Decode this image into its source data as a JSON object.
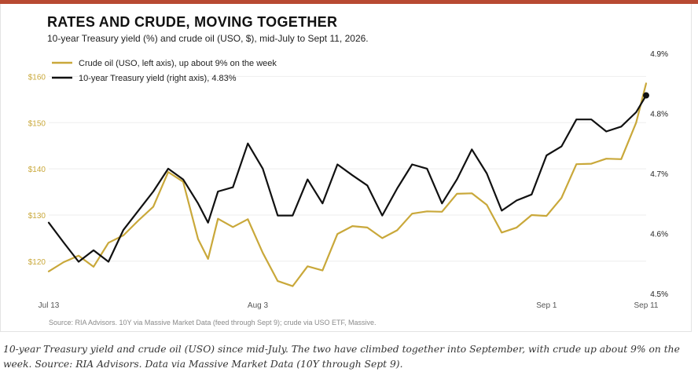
{
  "header": {
    "title": "RATES AND CRUDE, MOVING TOGETHER",
    "subtitle": "10-year Treasury yield (%) and crude oil (USO, $), mid-July to Sept 11, 2026."
  },
  "footer": {
    "source": "Source: RIA Advisors. 10Y via Massive Market Data (feed through Sept 9); crude via USO ETF, Massive.",
    "caption": "10-year Treasury yield and crude oil (USO) since mid-July. The two have climbed together into September, with crude up about 9% on the week. Source: RIA Advisors. Data via Massive Market Data (10Y through Sept 9)."
  },
  "colors": {
    "accent_bar": "#b84a32",
    "crude": "#c9a83a",
    "yield": "#111111",
    "left_axis_text": "#c9a83a",
    "grid": "#eeeeee"
  },
  "chart_data": {
    "type": "line",
    "title": "RATES AND CRUDE, MOVING TOGETHER",
    "x_ticks": [
      {
        "label": "Jul 13",
        "day": 0
      },
      {
        "label": "Aug 3",
        "day": 21
      },
      {
        "label": "Sep 1",
        "day": 50
      },
      {
        "label": "Sep 11",
        "day": 60
      }
    ],
    "x_range": [
      0,
      60
    ],
    "y_left": {
      "ylim": [
        113,
        165
      ],
      "ticks": [
        {
          "v": 120,
          "label": "$120"
        },
        {
          "v": 130,
          "label": "$130"
        },
        {
          "v": 140,
          "label": "$140"
        },
        {
          "v": 150,
          "label": "$150"
        },
        {
          "v": 160,
          "label": "$160"
        }
      ]
    },
    "y_right": {
      "ylim": [
        4.5,
        4.9
      ],
      "ticks": [
        {
          "v": 4.5,
          "label": "4.5%"
        },
        {
          "v": 4.6,
          "label": "4.6%"
        },
        {
          "v": 4.7,
          "label": "4.7%"
        },
        {
          "v": 4.8,
          "label": "4.8%"
        },
        {
          "v": 4.9,
          "label": "4.9%"
        }
      ]
    },
    "grid": true,
    "legend_position": "top-left",
    "series": [
      {
        "name": "Crude oil (USO, left axis), up about 9% on the week",
        "axis": "left",
        "color": "#c9a83a",
        "x": [
          0,
          1.5,
          3,
          4.5,
          6,
          7.5,
          9,
          10.5,
          12,
          13.5,
          15,
          16,
          17,
          18.5,
          20,
          21.5,
          23,
          24.5,
          26,
          27.5,
          29,
          30.5,
          32,
          33.5,
          35,
          36.5,
          38,
          39.5,
          41,
          42.5,
          44,
          45.5,
          47,
          48.5,
          50,
          51.5,
          53,
          54.5,
          56,
          57.5,
          59,
          60
        ],
        "values": [
          117.8,
          119.8,
          121.2,
          118.8,
          124.0,
          125.6,
          128.8,
          131.8,
          139.3,
          137.2,
          124.8,
          120.5,
          129.2,
          127.4,
          129.1,
          121.8,
          115.7,
          114.6,
          118.9,
          118.0,
          125.9,
          127.6,
          127.3,
          125.0,
          126.7,
          130.3,
          130.8,
          130.7,
          134.6,
          134.7,
          132.2,
          126.2,
          127.3,
          130.0,
          129.8,
          133.7,
          141.0,
          141.1,
          142.2,
          142.1,
          150.0,
          158.5
        ]
      },
      {
        "name": "10-year Treasury yield (right axis), 4.83%",
        "axis": "right",
        "color": "#111111",
        "x": [
          0,
          1.5,
          3,
          4.5,
          6,
          7.5,
          9,
          10.5,
          12,
          13.5,
          15,
          16,
          17,
          18.5,
          20,
          21.5,
          23,
          24.5,
          26,
          27.5,
          29,
          30.5,
          32,
          33.5,
          35,
          36.5,
          38,
          39.5,
          41,
          42.5,
          44,
          45.5,
          47,
          48.5,
          50,
          51.5,
          53,
          54.5,
          56,
          57.5,
          59,
          60
        ],
        "values": [
          4.618,
          4.585,
          4.553,
          4.572,
          4.553,
          4.606,
          4.638,
          4.67,
          4.708,
          4.69,
          4.65,
          4.618,
          4.67,
          4.677,
          4.75,
          4.708,
          4.63,
          4.63,
          4.69,
          4.65,
          4.715,
          4.697,
          4.68,
          4.63,
          4.675,
          4.715,
          4.708,
          4.65,
          4.69,
          4.74,
          4.7,
          4.638,
          4.655,
          4.665,
          4.73,
          4.745,
          4.79,
          4.79,
          4.77,
          4.778,
          4.802,
          4.83
        ]
      }
    ],
    "end_marker": {
      "series": 1,
      "day": 60,
      "value": 4.83
    }
  }
}
